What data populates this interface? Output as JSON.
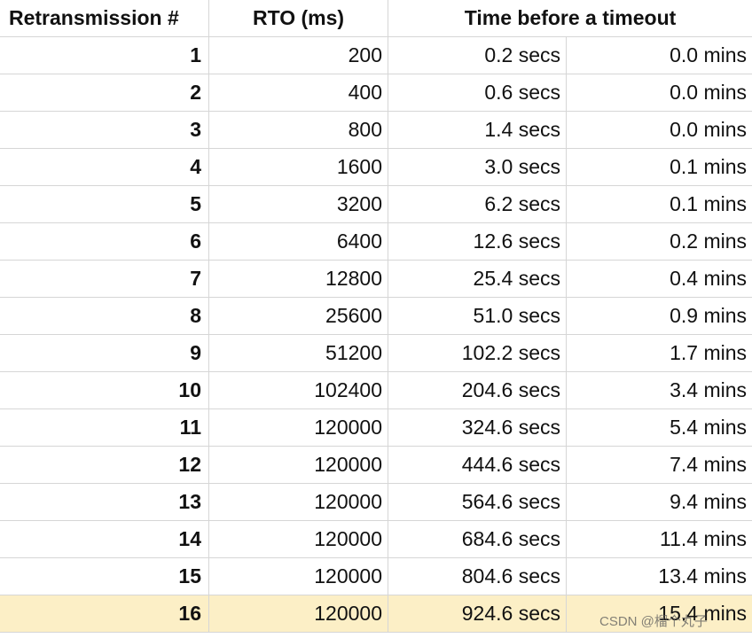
{
  "table": {
    "header": [
      "Retransmission #",
      "RTO (ms)",
      "Time before a timeout"
    ],
    "rows": [
      [
        1,
        200,
        "0.2 secs",
        "0.0 mins"
      ],
      [
        2,
        400,
        "0.6 secs",
        "0.0 mins"
      ],
      [
        3,
        800,
        "1.4 secs",
        "0.0 mins"
      ],
      [
        4,
        1600,
        "3.0 secs",
        "0.1 mins"
      ],
      [
        5,
        3200,
        "6.2 secs",
        "0.1 mins"
      ],
      [
        6,
        6400,
        "12.6 secs",
        "0.2 mins"
      ],
      [
        7,
        12800,
        "25.4 secs",
        "0.4 mins"
      ],
      [
        8,
        25600,
        "51.0 secs",
        "0.9 mins"
      ],
      [
        9,
        51200,
        "102.2 secs",
        "1.7 mins"
      ],
      [
        10,
        102400,
        "204.6 secs",
        "3.4 mins"
      ],
      [
        11,
        120000,
        "324.6 secs",
        "5.4 mins"
      ],
      [
        12,
        120000,
        "444.6 secs",
        "7.4 mins"
      ],
      [
        13,
        120000,
        "564.6 secs",
        "9.4 mins"
      ],
      [
        14,
        120000,
        "684.6 secs",
        "11.4 mins"
      ],
      [
        15,
        120000,
        "804.6 secs",
        "13.4 mins"
      ],
      [
        16,
        120000,
        "924.6 secs",
        "15.4 mins"
      ]
    ],
    "highlight_row": 15
  },
  "watermark": "CSDN @榴个丸子"
}
